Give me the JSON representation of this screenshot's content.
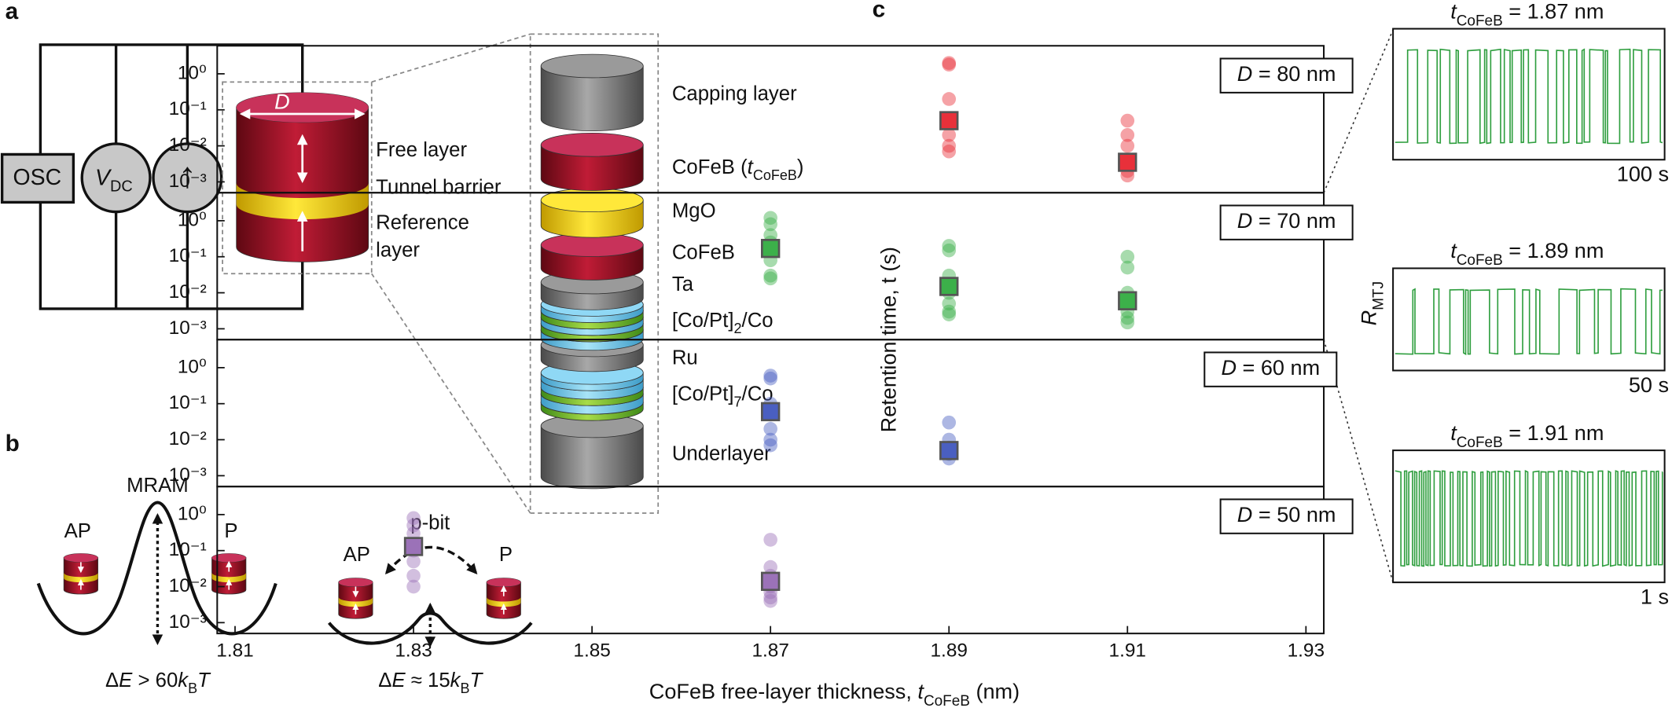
{
  "panel_a": {
    "label": "a",
    "osc": "OSC",
    "vdc": [
      {
        "text": "V",
        "italic": true
      },
      {
        "text": "DC",
        "sub": true
      }
    ],
    "current_symbol": "↑",
    "diameter": "D",
    "free_layer": "Free layer",
    "tunnel_barrier": "Tunnel barrier",
    "reference_layer": [
      "Reference",
      "layer"
    ],
    "stack": [
      [
        {
          "text": "Capping layer"
        }
      ],
      [
        {
          "text": "CoFeB ("
        },
        {
          "text": "t",
          "italic": true
        },
        {
          "text": "CoFeB",
          "sub": true
        },
        {
          "text": ")"
        }
      ],
      [
        {
          "text": "MgO"
        }
      ],
      [
        {
          "text": "CoFeB"
        }
      ],
      [
        {
          "text": "Ta"
        }
      ],
      [
        {
          "text": "[Co/Pt]"
        },
        {
          "text": "2",
          "sub": true
        },
        {
          "text": "/Co"
        }
      ],
      [
        {
          "text": "Ru"
        }
      ],
      [
        {
          "text": "[Co/Pt]"
        },
        {
          "text": "7",
          "sub": true
        },
        {
          "text": "/Co"
        }
      ],
      [
        {
          "text": "Underlayer"
        }
      ]
    ]
  },
  "panel_b": {
    "label": "b",
    "mram": "MRAM",
    "mram_ap": "AP",
    "mram_p": "P",
    "mram_barrier": [
      {
        "text": "Δ"
      },
      {
        "text": "E",
        "italic": true
      },
      {
        "text": " > 60"
      },
      {
        "text": "k",
        "italic": true
      },
      {
        "text": "B",
        "sub": true
      },
      {
        "text": "T",
        "italic": true
      }
    ],
    "pbit": "p-bit",
    "pbit_ap": "AP",
    "pbit_p": "P",
    "pbit_barrier": [
      {
        "text": "Δ"
      },
      {
        "text": "E",
        "italic": true
      },
      {
        "text": " ≈ 15"
      },
      {
        "text": "k",
        "italic": true
      },
      {
        "text": "B",
        "sub": true
      },
      {
        "text": "T",
        "italic": true
      }
    ]
  },
  "chart_data": {
    "type": "scatter",
    "label": "c",
    "ylabel": "Retention time, t (s)",
    "xlabel": [
      {
        "text": "CoFeB free-layer thickness, "
      },
      {
        "text": "t",
        "italic": true
      },
      {
        "text": "CoFeB",
        "sub": true
      },
      {
        "text": " (nm)"
      }
    ],
    "xlim": [
      1.808,
      1.932
    ],
    "xticks": [
      1.81,
      1.83,
      1.85,
      1.87,
      1.89,
      1.91,
      1.93
    ],
    "ylog": true,
    "ylim": [
      0.0005,
      6
    ],
    "yticks": [
      {
        "value": 0.001,
        "label": "10⁻³"
      },
      {
        "value": 0.01,
        "label": "10⁻²"
      },
      {
        "value": 0.1,
        "label": "10⁻¹"
      },
      {
        "value": 1,
        "label": "10⁰"
      }
    ],
    "panels": [
      {
        "label": [
          {
            "text": "D",
            "italic": true
          },
          {
            "text": " = 80 nm"
          }
        ],
        "color": "#e8303a",
        "points": {
          "x": [
            1.89,
            1.89,
            1.89,
            1.89,
            1.89,
            1.89,
            1.89,
            1.91,
            1.91,
            1.91,
            1.91,
            1.91,
            1.91
          ],
          "values": [
            2.0,
            1.8,
            0.2,
            0.05,
            0.02,
            0.01,
            0.007,
            0.05,
            0.02,
            0.01,
            0.004,
            0.002,
            0.0015
          ]
        },
        "means": {
          "x": [
            1.89,
            1.91
          ],
          "values": [
            0.05,
            0.0035
          ]
        }
      },
      {
        "label": [
          {
            "text": "D",
            "italic": true
          },
          {
            "text": " = 70 nm"
          }
        ],
        "color": "#3cb04a",
        "points": {
          "x": [
            1.87,
            1.87,
            1.87,
            1.87,
            1.87,
            1.87,
            1.87,
            1.87,
            1.89,
            1.89,
            1.89,
            1.89,
            1.89,
            1.89,
            1.89,
            1.91,
            1.91,
            1.91,
            1.91,
            1.91,
            1.91,
            1.91
          ],
          "values": [
            1.2,
            0.8,
            0.4,
            0.25,
            0.15,
            0.08,
            0.03,
            0.025,
            0.2,
            0.15,
            0.03,
            0.01,
            0.005,
            0.003,
            0.0025,
            0.1,
            0.05,
            0.01,
            0.005,
            0.003,
            0.002,
            0.0015
          ]
        },
        "means": {
          "x": [
            1.87,
            1.89,
            1.91
          ],
          "values": [
            0.17,
            0.015,
            0.006
          ]
        }
      },
      {
        "label": [
          {
            "text": "D",
            "italic": true
          },
          {
            "text": " = 60 nm"
          }
        ],
        "color": "#4a5fc1",
        "points": {
          "x": [
            1.87,
            1.87,
            1.87,
            1.87,
            1.87,
            1.87,
            1.87,
            1.89,
            1.89,
            1.89,
            1.89,
            1.89
          ],
          "values": [
            0.6,
            0.5,
            0.1,
            0.05,
            0.02,
            0.01,
            0.007,
            0.03,
            0.01,
            0.006,
            0.004,
            0.003
          ]
        },
        "means": {
          "x": [
            1.87,
            1.89
          ],
          "values": [
            0.06,
            0.005
          ]
        }
      },
      {
        "label": [
          {
            "text": "D",
            "italic": true
          },
          {
            "text": " = 50 nm"
          }
        ],
        "color": "#9b72b8",
        "points": {
          "x": [
            1.83,
            1.83,
            1.83,
            1.83,
            1.83,
            1.83,
            1.83,
            1.87,
            1.87,
            1.87,
            1.87,
            1.87,
            1.87,
            1.87
          ],
          "values": [
            0.8,
            0.5,
            0.3,
            0.1,
            0.05,
            0.02,
            0.01,
            0.2,
            0.035,
            0.02,
            0.01,
            0.007,
            0.005,
            0.004
          ]
        },
        "means": {
          "x": [
            1.83,
            1.87
          ],
          "values": [
            0.13,
            0.014
          ]
        }
      }
    ],
    "trace_ylabel": [
      {
        "text": "R",
        "italic": true
      },
      {
        "text": "MTJ",
        "sub": true
      }
    ],
    "trace_color": "#2e9e3e",
    "traces": [
      {
        "title": [
          {
            "text": "t",
            "italic": true
          },
          {
            "text": "CoFeB",
            "sub": true
          },
          {
            "text": " = 1.87 nm"
          }
        ],
        "scale": "100 s"
      },
      {
        "title": [
          {
            "text": "t",
            "italic": true
          },
          {
            "text": "CoFeB",
            "sub": true
          },
          {
            "text": " = 1.89 nm"
          }
        ],
        "scale": "50 s"
      },
      {
        "title": [
          {
            "text": "t",
            "italic": true
          },
          {
            "text": "CoFeB",
            "sub": true
          },
          {
            "text": " = 1.91 nm"
          }
        ],
        "scale": "1 s"
      }
    ]
  }
}
